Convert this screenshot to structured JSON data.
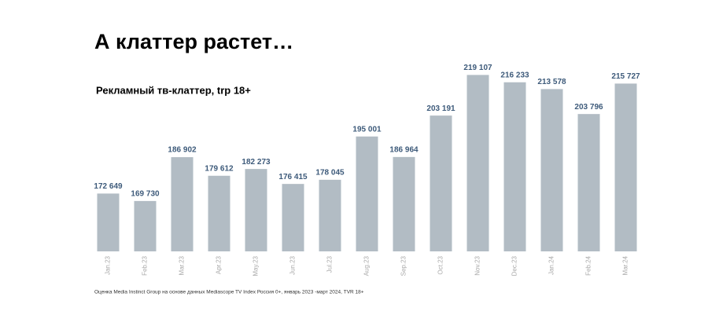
{
  "chart_data": {
    "type": "bar",
    "title": "А клаттер растет…",
    "subtitle": "Рекламный тв-клаттер, trp 18+",
    "note": "Оценка Media Instinct Group на основе данных Mediascope TV Index Россия 0+, январь 2023 -март 2024, TVR 18+",
    "categories": [
      "Jan.23",
      "Feb.23",
      "Mar.23",
      "Apr.23",
      "May.23",
      "Jun.23",
      "Jul.23",
      "Aug.23",
      "Sep.23",
      "Oct.23",
      "Nov.23",
      "Dec.23",
      "Jan.24",
      "Feb.24",
      "Mar.24"
    ],
    "values": [
      172649,
      169730,
      186902,
      179612,
      182273,
      176415,
      178045,
      195001,
      186964,
      203191,
      219107,
      216233,
      213578,
      203796,
      215727
    ],
    "value_labels": [
      "172 649",
      "169 730",
      "186 902",
      "179 612",
      "182 273",
      "176 415",
      "178 045",
      "195 001",
      "186 964",
      "203 191",
      "219 107",
      "216 233",
      "213 578",
      "203 796",
      "215 727"
    ],
    "color": "#b2bcc4",
    "ylim": [
      150000,
      230000
    ]
  }
}
